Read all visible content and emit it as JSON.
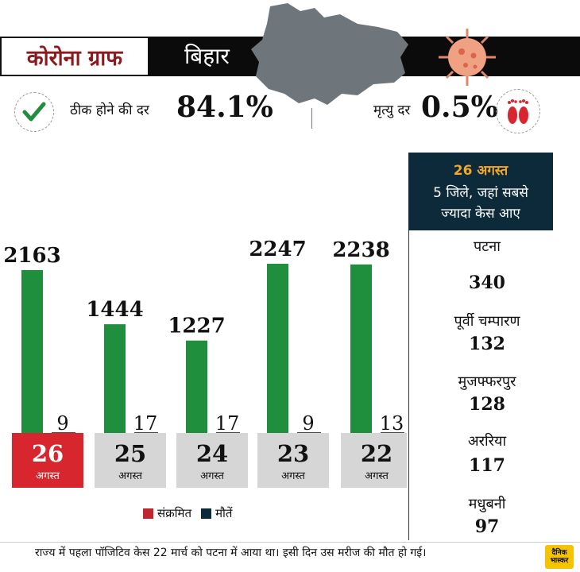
{
  "header": {
    "title": "कोरोना ग्राफ",
    "state": "बिहार"
  },
  "stats": {
    "recovery_label": "ठीक होने की दर",
    "recovery_value": "84.1%",
    "death_label": "मृत्यु दर",
    "death_value": "0.5%"
  },
  "panel": {
    "date": "26 अगस्त",
    "subtitle": "5 जिले, जहां सबसे ज्यादा केस आए",
    "districts": [
      {
        "name": "पटना",
        "value": "340"
      },
      {
        "name": "पूर्वी चम्पारण",
        "value": "132"
      },
      {
        "name": "मुजफ्फरपुर",
        "value": "128"
      },
      {
        "name": "अररिया",
        "value": "117"
      },
      {
        "name": "मधुबनी",
        "value": "97"
      }
    ]
  },
  "legend": {
    "infected": "संक्रमित",
    "deaths": "मौतें"
  },
  "colors": {
    "green_bar": "#1f8f3e",
    "highlight": "#d7262e",
    "date_box": "#d6d6d6",
    "panel_bg": "#0d2a3a",
    "accent_orange": "#f2a72b",
    "death_swatch": "#0d2a3a",
    "infected_swatch": "#c0262d"
  },
  "chart_data": {
    "type": "bar",
    "categories": [
      "26 अगस्त",
      "25 अगस्त",
      "24 अगस्त",
      "23 अगस्त",
      "22 अगस्त"
    ],
    "series": [
      {
        "name": "संक्रमित",
        "values": [
          2163,
          1444,
          1227,
          2247,
          2238
        ]
      },
      {
        "name": "मौतें",
        "values": [
          9,
          17,
          17,
          9,
          13
        ]
      }
    ],
    "date_numbers": [
      "26",
      "25",
      "24",
      "23",
      "22"
    ],
    "date_word": "अगस्त",
    "highlight_index": 0,
    "ylim": [
      0,
      2500
    ],
    "grid": false
  },
  "footer": {
    "note": "राज्य में पहला पॉजिटिव केस 22 मार्च को पटना में आया था। इसी दिन उस मरीज की मौत हो गई।",
    "logo": "दैनिक भास्कर"
  }
}
